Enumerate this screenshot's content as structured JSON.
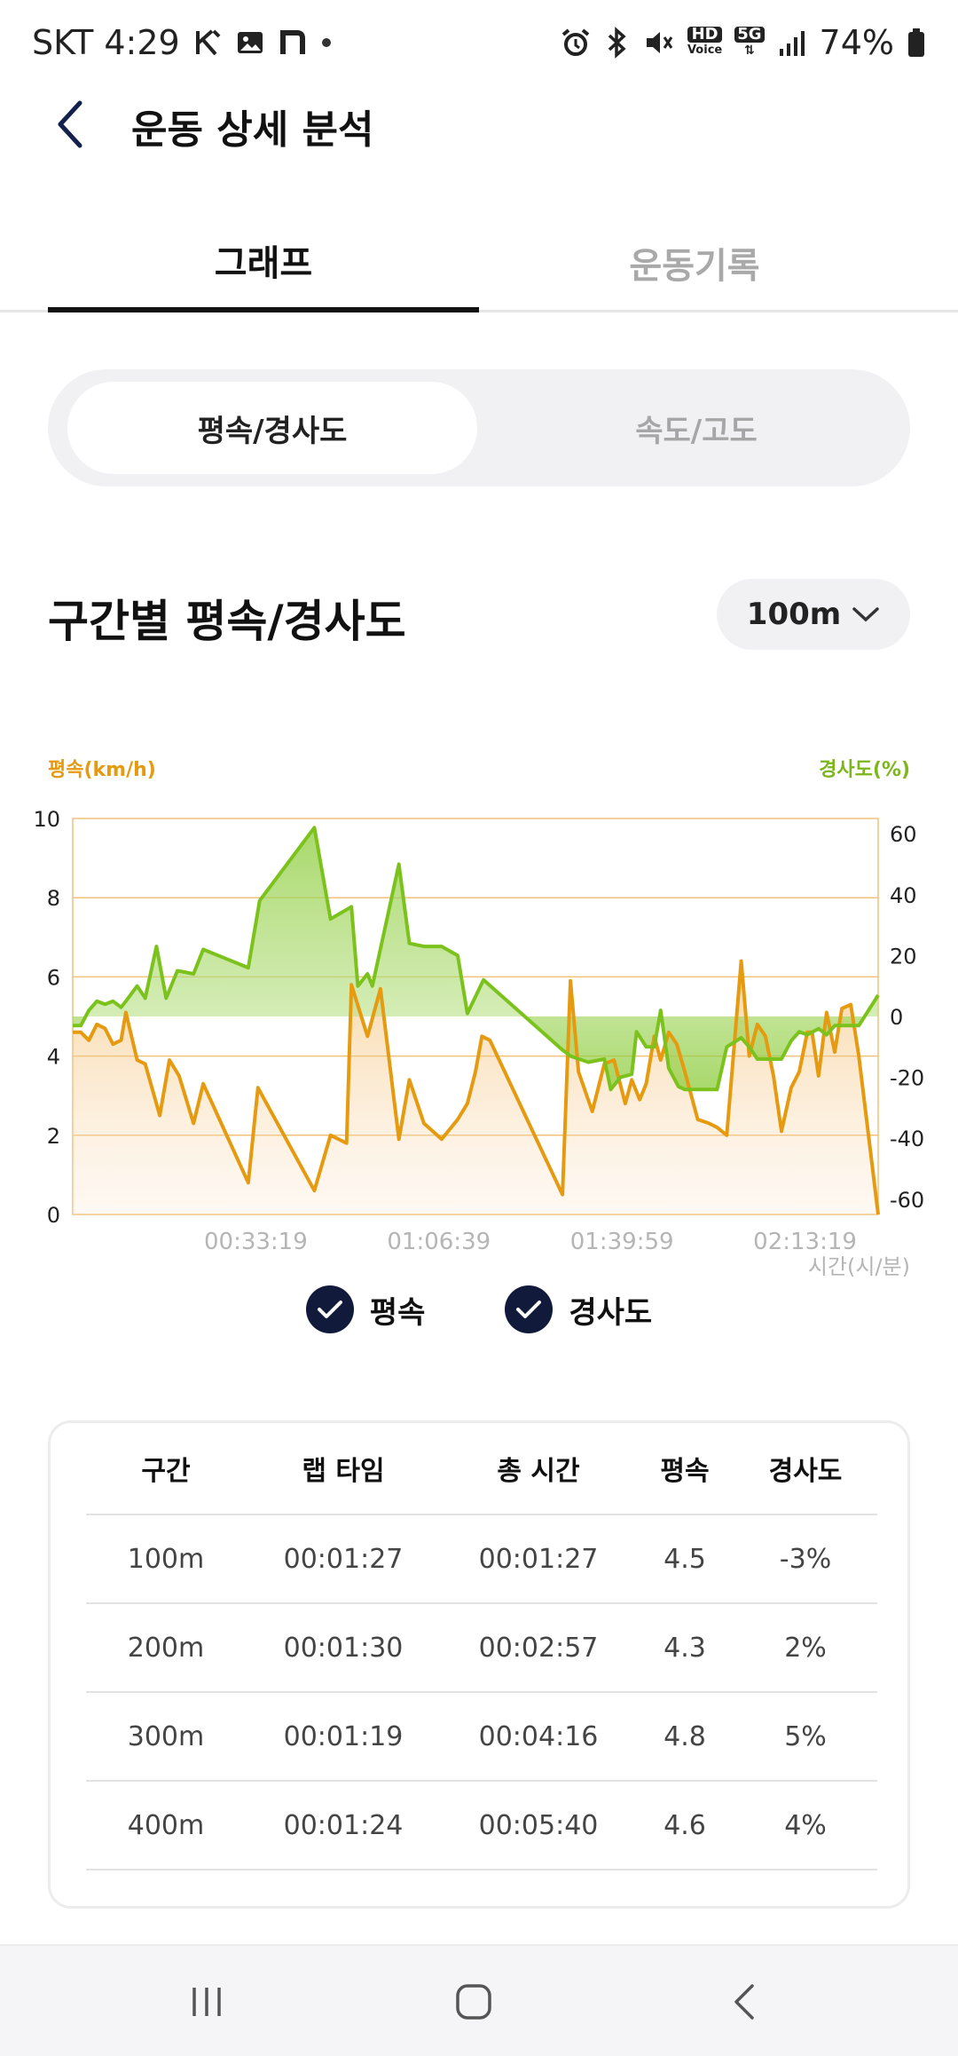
{
  "status_bar": {
    "carrier_time": "SKT 4:29",
    "battery": "74%",
    "net_label": "5G",
    "hd_label": "HD",
    "voice_label": "Voice"
  },
  "header": {
    "title": "운동 상세 분석"
  },
  "tabs": [
    {
      "label": "그래프",
      "active": true
    },
    {
      "label": "운동기록",
      "active": false
    }
  ],
  "segment": [
    {
      "label": "평속/경사도",
      "active": true
    },
    {
      "label": "속도/고도",
      "active": false
    }
  ],
  "section": {
    "title": "구간별 평속/경사도",
    "distance_select": "100m"
  },
  "chart": {
    "left_axis_title": "평속(km/h)",
    "right_axis_title": "경사도(%)",
    "x_axis_title": "시간(시/분)",
    "left_ticks": [
      "10",
      "8",
      "6",
      "4",
      "2",
      "0"
    ],
    "right_ticks": [
      "60",
      "40",
      "20",
      "0",
      "-20",
      "-40",
      "-60"
    ],
    "x_ticks": [
      "00:33:19",
      "01:06:39",
      "01:39:59",
      "02:13:19"
    ]
  },
  "chart_data": {
    "type": "line",
    "x_axis": "time",
    "left_ylim": [
      0,
      10
    ],
    "right_ylim": [
      -65,
      65
    ],
    "grid": true,
    "series": [
      {
        "name": "평속",
        "axis": "left",
        "color": "#e59a10",
        "points": [
          [
            0.0,
            4.6
          ],
          [
            0.01,
            4.6
          ],
          [
            0.02,
            4.4
          ],
          [
            0.03,
            4.8
          ],
          [
            0.04,
            4.7
          ],
          [
            0.05,
            4.3
          ],
          [
            0.06,
            4.4
          ],
          [
            0.066,
            5.1
          ],
          [
            0.08,
            3.9
          ],
          [
            0.09,
            3.8
          ],
          [
            0.108,
            2.5
          ],
          [
            0.12,
            3.9
          ],
          [
            0.132,
            3.5
          ],
          [
            0.15,
            2.3
          ],
          [
            0.162,
            3.3
          ],
          [
            0.218,
            0.8
          ],
          [
            0.23,
            3.2
          ],
          [
            0.3,
            0.6
          ],
          [
            0.32,
            2.0
          ],
          [
            0.34,
            1.8
          ],
          [
            0.346,
            5.8
          ],
          [
            0.366,
            4.5
          ],
          [
            0.382,
            5.7
          ],
          [
            0.405,
            1.9
          ],
          [
            0.418,
            3.4
          ],
          [
            0.436,
            2.3
          ],
          [
            0.458,
            1.9
          ],
          [
            0.478,
            2.4
          ],
          [
            0.49,
            2.8
          ],
          [
            0.5,
            3.6
          ],
          [
            0.508,
            4.5
          ],
          [
            0.518,
            4.4
          ],
          [
            0.608,
            0.5
          ],
          [
            0.618,
            5.9
          ],
          [
            0.628,
            3.6
          ],
          [
            0.645,
            2.6
          ],
          [
            0.66,
            3.8
          ],
          [
            0.672,
            3.9
          ],
          [
            0.686,
            2.8
          ],
          [
            0.694,
            3.4
          ],
          [
            0.704,
            2.9
          ],
          [
            0.712,
            3.3
          ],
          [
            0.722,
            4.5
          ],
          [
            0.73,
            3.9
          ],
          [
            0.74,
            4.6
          ],
          [
            0.75,
            4.3
          ],
          [
            0.76,
            3.6
          ],
          [
            0.776,
            2.4
          ],
          [
            0.79,
            2.3
          ],
          [
            0.8,
            2.2
          ],
          [
            0.812,
            2.0
          ],
          [
            0.83,
            6.4
          ],
          [
            0.84,
            4.0
          ],
          [
            0.85,
            4.8
          ],
          [
            0.86,
            4.5
          ],
          [
            0.87,
            3.5
          ],
          [
            0.88,
            2.1
          ],
          [
            0.892,
            3.2
          ],
          [
            0.902,
            3.6
          ],
          [
            0.912,
            4.6
          ],
          [
            0.918,
            4.6
          ],
          [
            0.926,
            3.5
          ],
          [
            0.936,
            5.1
          ],
          [
            0.946,
            4.1
          ],
          [
            0.955,
            5.2
          ],
          [
            0.966,
            5.3
          ],
          [
            0.976,
            4.0
          ],
          [
            1.0,
            0.0
          ]
        ]
      },
      {
        "name": "경사도",
        "axis": "right",
        "color": "#7cc21c",
        "points": [
          [
            0.0,
            -3
          ],
          [
            0.01,
            -3
          ],
          [
            0.02,
            2
          ],
          [
            0.03,
            5
          ],
          [
            0.04,
            4
          ],
          [
            0.05,
            5
          ],
          [
            0.06,
            3
          ],
          [
            0.066,
            5
          ],
          [
            0.08,
            10
          ],
          [
            0.09,
            6
          ],
          [
            0.104,
            23
          ],
          [
            0.116,
            6
          ],
          [
            0.13,
            15
          ],
          [
            0.15,
            14
          ],
          [
            0.162,
            22
          ],
          [
            0.218,
            16
          ],
          [
            0.232,
            38
          ],
          [
            0.3,
            62
          ],
          [
            0.32,
            32
          ],
          [
            0.346,
            36
          ],
          [
            0.354,
            10
          ],
          [
            0.366,
            14
          ],
          [
            0.372,
            10
          ],
          [
            0.405,
            50
          ],
          [
            0.418,
            24
          ],
          [
            0.436,
            23
          ],
          [
            0.458,
            23
          ],
          [
            0.478,
            20
          ],
          [
            0.49,
            1
          ],
          [
            0.51,
            12
          ],
          [
            0.608,
            -11
          ],
          [
            0.618,
            -13
          ],
          [
            0.64,
            -15
          ],
          [
            0.66,
            -14
          ],
          [
            0.668,
            -24
          ],
          [
            0.68,
            -20
          ],
          [
            0.694,
            -19
          ],
          [
            0.7,
            -5
          ],
          [
            0.712,
            -10
          ],
          [
            0.722,
            -10
          ],
          [
            0.73,
            2
          ],
          [
            0.74,
            -17
          ],
          [
            0.752,
            -23
          ],
          [
            0.76,
            -24
          ],
          [
            0.8,
            -24
          ],
          [
            0.812,
            -10
          ],
          [
            0.83,
            -7
          ],
          [
            0.84,
            -10
          ],
          [
            0.85,
            -14
          ],
          [
            0.87,
            -14
          ],
          [
            0.88,
            -14
          ],
          [
            0.892,
            -8
          ],
          [
            0.902,
            -5
          ],
          [
            0.912,
            -6
          ],
          [
            0.926,
            -4
          ],
          [
            0.936,
            -6
          ],
          [
            0.946,
            -3
          ],
          [
            0.96,
            -3
          ],
          [
            0.976,
            -3
          ],
          [
            1.0,
            7
          ]
        ]
      }
    ]
  },
  "legend": [
    {
      "label": "평속"
    },
    {
      "label": "경사도"
    }
  ],
  "table": {
    "headers": [
      "구간",
      "랩 타임",
      "총 시간",
      "평속",
      "경사도"
    ],
    "rows": [
      [
        "100m",
        "00:01:27",
        "00:01:27",
        "4.5",
        "-3%"
      ],
      [
        "200m",
        "00:01:30",
        "00:02:57",
        "4.3",
        "2%"
      ],
      [
        "300m",
        "00:01:19",
        "00:04:16",
        "4.8",
        "5%"
      ],
      [
        "400m",
        "00:01:24",
        "00:05:40",
        "4.6",
        "4%"
      ]
    ]
  }
}
